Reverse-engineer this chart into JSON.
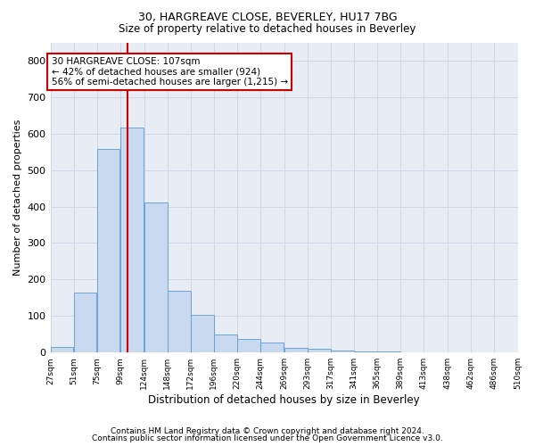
{
  "title1": "30, HARGREAVE CLOSE, BEVERLEY, HU17 7BG",
  "title2": "Size of property relative to detached houses in Beverley",
  "xlabel": "Distribution of detached houses by size in Beverley",
  "ylabel": "Number of detached properties",
  "footnote1": "Contains HM Land Registry data © Crown copyright and database right 2024.",
  "footnote2": "Contains public sector information licensed under the Open Government Licence v3.0.",
  "bar_color": "#c9d9f0",
  "bar_edge_color": "#5b9bd5",
  "annotation_line1": "30 HARGREAVE CLOSE: 107sqm",
  "annotation_line2": "← 42% of detached houses are smaller (924)",
  "annotation_line3": "56% of semi-detached houses are larger (1,215) →",
  "annotation_box_color": "#ffffff",
  "annotation_box_edge_color": "#cc0000",
  "vline_x": 107,
  "vline_color": "#cc0000",
  "bins": [
    27,
    51,
    75,
    99,
    124,
    148,
    172,
    196,
    220,
    244,
    269,
    293,
    317,
    341,
    365,
    389,
    413,
    438,
    462,
    486,
    510
  ],
  "bar_heights": [
    15,
    165,
    558,
    617,
    412,
    170,
    102,
    50,
    37,
    28,
    12,
    10,
    6,
    4,
    4,
    1,
    0,
    0,
    1,
    0,
    5
  ],
  "ylim": [
    0,
    850
  ],
  "yticks": [
    0,
    100,
    200,
    300,
    400,
    500,
    600,
    700,
    800
  ],
  "grid_color": "#d0d8e8",
  "bg_color": "#e8edf5",
  "title1_fontsize": 9,
  "title2_fontsize": 8.5,
  "xlabel_fontsize": 8.5,
  "ylabel_fontsize": 8,
  "footnote_fontsize": 6.5,
  "tick_fontsize": 6.5
}
